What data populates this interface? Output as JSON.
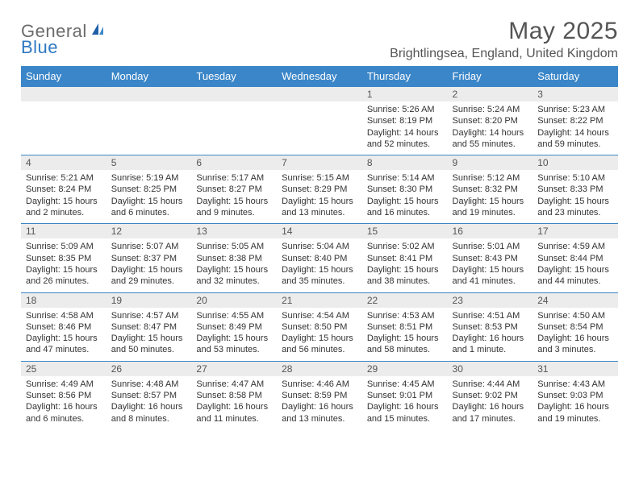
{
  "logo": {
    "part1": "General",
    "part2": "Blue"
  },
  "title": "May 2025",
  "location": "Brightlingsea, England, United Kingdom",
  "colors": {
    "header_bg": "#3b86c8",
    "header_text": "#ffffff",
    "daynum_bg": "#ececec",
    "border": "#3b86c8",
    "title_color": "#555555",
    "logo_gray": "#6b6b6b",
    "logo_blue": "#2e78c2"
  },
  "typography": {
    "title_fontsize": 30,
    "location_fontsize": 16,
    "header_fontsize": 13,
    "daynum_fontsize": 12,
    "body_fontsize": 11
  },
  "columns": [
    "Sunday",
    "Monday",
    "Tuesday",
    "Wednesday",
    "Thursday",
    "Friday",
    "Saturday"
  ],
  "weeks": [
    [
      {
        "n": "",
        "lines": []
      },
      {
        "n": "",
        "lines": []
      },
      {
        "n": "",
        "lines": []
      },
      {
        "n": "",
        "lines": []
      },
      {
        "n": "1",
        "lines": [
          "Sunrise: 5:26 AM",
          "Sunset: 8:19 PM",
          "Daylight: 14 hours and 52 minutes."
        ]
      },
      {
        "n": "2",
        "lines": [
          "Sunrise: 5:24 AM",
          "Sunset: 8:20 PM",
          "Daylight: 14 hours and 55 minutes."
        ]
      },
      {
        "n": "3",
        "lines": [
          "Sunrise: 5:23 AM",
          "Sunset: 8:22 PM",
          "Daylight: 14 hours and 59 minutes."
        ]
      }
    ],
    [
      {
        "n": "4",
        "lines": [
          "Sunrise: 5:21 AM",
          "Sunset: 8:24 PM",
          "Daylight: 15 hours and 2 minutes."
        ]
      },
      {
        "n": "5",
        "lines": [
          "Sunrise: 5:19 AM",
          "Sunset: 8:25 PM",
          "Daylight: 15 hours and 6 minutes."
        ]
      },
      {
        "n": "6",
        "lines": [
          "Sunrise: 5:17 AM",
          "Sunset: 8:27 PM",
          "Daylight: 15 hours and 9 minutes."
        ]
      },
      {
        "n": "7",
        "lines": [
          "Sunrise: 5:15 AM",
          "Sunset: 8:29 PM",
          "Daylight: 15 hours and 13 minutes."
        ]
      },
      {
        "n": "8",
        "lines": [
          "Sunrise: 5:14 AM",
          "Sunset: 8:30 PM",
          "Daylight: 15 hours and 16 minutes."
        ]
      },
      {
        "n": "9",
        "lines": [
          "Sunrise: 5:12 AM",
          "Sunset: 8:32 PM",
          "Daylight: 15 hours and 19 minutes."
        ]
      },
      {
        "n": "10",
        "lines": [
          "Sunrise: 5:10 AM",
          "Sunset: 8:33 PM",
          "Daylight: 15 hours and 23 minutes."
        ]
      }
    ],
    [
      {
        "n": "11",
        "lines": [
          "Sunrise: 5:09 AM",
          "Sunset: 8:35 PM",
          "Daylight: 15 hours and 26 minutes."
        ]
      },
      {
        "n": "12",
        "lines": [
          "Sunrise: 5:07 AM",
          "Sunset: 8:37 PM",
          "Daylight: 15 hours and 29 minutes."
        ]
      },
      {
        "n": "13",
        "lines": [
          "Sunrise: 5:05 AM",
          "Sunset: 8:38 PM",
          "Daylight: 15 hours and 32 minutes."
        ]
      },
      {
        "n": "14",
        "lines": [
          "Sunrise: 5:04 AM",
          "Sunset: 8:40 PM",
          "Daylight: 15 hours and 35 minutes."
        ]
      },
      {
        "n": "15",
        "lines": [
          "Sunrise: 5:02 AM",
          "Sunset: 8:41 PM",
          "Daylight: 15 hours and 38 minutes."
        ]
      },
      {
        "n": "16",
        "lines": [
          "Sunrise: 5:01 AM",
          "Sunset: 8:43 PM",
          "Daylight: 15 hours and 41 minutes."
        ]
      },
      {
        "n": "17",
        "lines": [
          "Sunrise: 4:59 AM",
          "Sunset: 8:44 PM",
          "Daylight: 15 hours and 44 minutes."
        ]
      }
    ],
    [
      {
        "n": "18",
        "lines": [
          "Sunrise: 4:58 AM",
          "Sunset: 8:46 PM",
          "Daylight: 15 hours and 47 minutes."
        ]
      },
      {
        "n": "19",
        "lines": [
          "Sunrise: 4:57 AM",
          "Sunset: 8:47 PM",
          "Daylight: 15 hours and 50 minutes."
        ]
      },
      {
        "n": "20",
        "lines": [
          "Sunrise: 4:55 AM",
          "Sunset: 8:49 PM",
          "Daylight: 15 hours and 53 minutes."
        ]
      },
      {
        "n": "21",
        "lines": [
          "Sunrise: 4:54 AM",
          "Sunset: 8:50 PM",
          "Daylight: 15 hours and 56 minutes."
        ]
      },
      {
        "n": "22",
        "lines": [
          "Sunrise: 4:53 AM",
          "Sunset: 8:51 PM",
          "Daylight: 15 hours and 58 minutes."
        ]
      },
      {
        "n": "23",
        "lines": [
          "Sunrise: 4:51 AM",
          "Sunset: 8:53 PM",
          "Daylight: 16 hours and 1 minute."
        ]
      },
      {
        "n": "24",
        "lines": [
          "Sunrise: 4:50 AM",
          "Sunset: 8:54 PM",
          "Daylight: 16 hours and 3 minutes."
        ]
      }
    ],
    [
      {
        "n": "25",
        "lines": [
          "Sunrise: 4:49 AM",
          "Sunset: 8:56 PM",
          "Daylight: 16 hours and 6 minutes."
        ]
      },
      {
        "n": "26",
        "lines": [
          "Sunrise: 4:48 AM",
          "Sunset: 8:57 PM",
          "Daylight: 16 hours and 8 minutes."
        ]
      },
      {
        "n": "27",
        "lines": [
          "Sunrise: 4:47 AM",
          "Sunset: 8:58 PM",
          "Daylight: 16 hours and 11 minutes."
        ]
      },
      {
        "n": "28",
        "lines": [
          "Sunrise: 4:46 AM",
          "Sunset: 8:59 PM",
          "Daylight: 16 hours and 13 minutes."
        ]
      },
      {
        "n": "29",
        "lines": [
          "Sunrise: 4:45 AM",
          "Sunset: 9:01 PM",
          "Daylight: 16 hours and 15 minutes."
        ]
      },
      {
        "n": "30",
        "lines": [
          "Sunrise: 4:44 AM",
          "Sunset: 9:02 PM",
          "Daylight: 16 hours and 17 minutes."
        ]
      },
      {
        "n": "31",
        "lines": [
          "Sunrise: 4:43 AM",
          "Sunset: 9:03 PM",
          "Daylight: 16 hours and 19 minutes."
        ]
      }
    ]
  ]
}
